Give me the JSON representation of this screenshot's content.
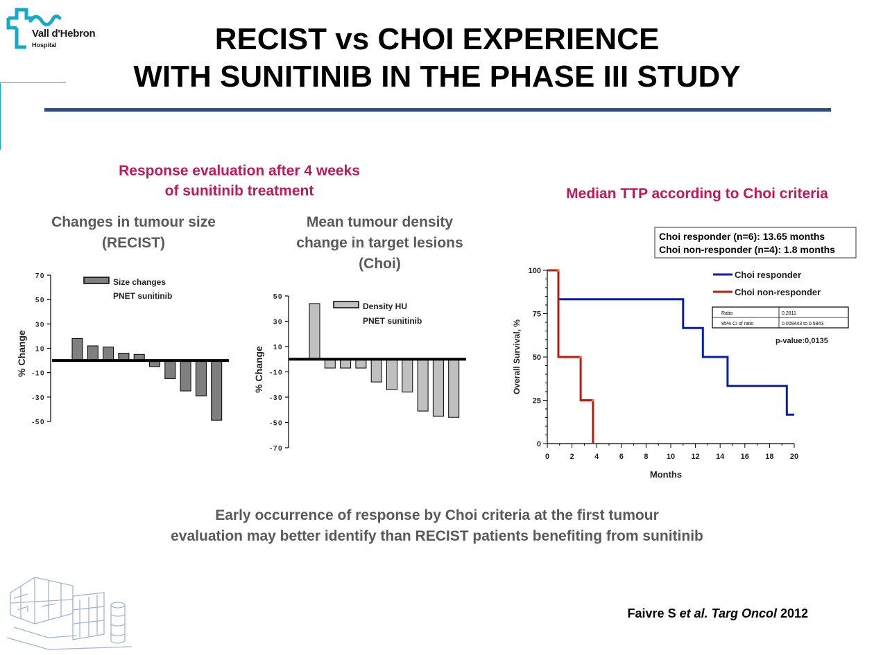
{
  "logo": {
    "name": "Vall d'Hebron",
    "sub": "Hospital"
  },
  "title": {
    "line1": "RECIST vs CHOI EXPERIENCE",
    "line2": "WITH SUNITINIB IN THE PHASE III STUDY"
  },
  "left_heading": {
    "line1": "Response evaluation after 4 weeks",
    "line2": "of sunitinib treatment"
  },
  "right_heading": "Median TTP according to Choi criteria",
  "recist_heading": {
    "line1": "Changes in tumour size",
    "line2": "(RECIST)"
  },
  "choi_heading": {
    "line1": "Mean tumour density",
    "line2": "change in target lesions",
    "line3": "(Choi)"
  },
  "conclusion": {
    "line1": "Early occurrence of response by Choi criteria at the first tumour",
    "line2": "evaluation may better identify than RECIST patients benefiting from sunitinib"
  },
  "citation": {
    "author": "Faivre S ",
    "etal": "et al.",
    "journal": " Targ Oncol",
    "year": " 2012"
  },
  "colors": {
    "accent_pink": "#c0185a",
    "rule_blue": "#2e4d7b",
    "responder": "#0a1fa8",
    "non_responder": "#b21f12",
    "bar_dark": "#7f7f7f",
    "bar_light": "#c0c0c0"
  },
  "chart_data": [
    {
      "type": "bar",
      "ylabel": "% Change",
      "ylim": [
        -50,
        70
      ],
      "yticks": [
        70,
        50,
        30,
        10,
        -10,
        -30,
        -50
      ],
      "legend": {
        "label": "Size changes",
        "sub": "PNET sunitinib"
      },
      "values": [
        18,
        12,
        11,
        6,
        5,
        -5,
        -15,
        -25,
        -29,
        -49
      ]
    },
    {
      "type": "bar",
      "ylabel": "% Change",
      "ylim": [
        -70,
        50
      ],
      "yticks": [
        50,
        30,
        10,
        -10,
        -30,
        -50,
        -70
      ],
      "legend": {
        "label": "Density HU",
        "sub": "PNET sunitinib"
      },
      "values": [
        44,
        -7,
        -7,
        -7,
        -18,
        -24,
        -26,
        -41,
        -45,
        -46
      ]
    },
    {
      "type": "line",
      "xlabel": "Months",
      "ylabel": "Overall Survival, %",
      "xlim": [
        0,
        20
      ],
      "ylim": [
        0,
        100
      ],
      "xticks": [
        0,
        2,
        4,
        6,
        8,
        10,
        12,
        14,
        16,
        18,
        20
      ],
      "yticks": [
        0,
        25,
        50,
        75,
        100
      ],
      "summary_box": {
        "line1": "Choi responder (n=6): 13.65 months",
        "line2": "Choi non-responder (n=4): 1.8 months"
      },
      "stats_table": [
        {
          "label": "Ratio",
          "value": "0.2811"
        },
        {
          "label": "95% CI of ratio",
          "value": "0.009443 to 0.5843"
        }
      ],
      "p_value": "p-value:0,0135",
      "series": [
        {
          "name": "Choi responder",
          "color": "#0a1fa8",
          "x": [
            0,
            0.9,
            0.9,
            11,
            11,
            12.6,
            12.6,
            14.6,
            14.6,
            19.4,
            19.4,
            20
          ],
          "y": [
            100,
            100,
            83.3,
            83.3,
            66.7,
            66.7,
            50,
            50,
            33.3,
            33.3,
            16.7,
            16.7
          ]
        },
        {
          "name": "Choi non-responder",
          "color": "#b21f12",
          "x": [
            0,
            0.9,
            0.9,
            2.7,
            2.7,
            3.7,
            3.7
          ],
          "y": [
            100,
            100,
            50,
            50,
            25,
            25,
            0
          ]
        }
      ]
    }
  ]
}
